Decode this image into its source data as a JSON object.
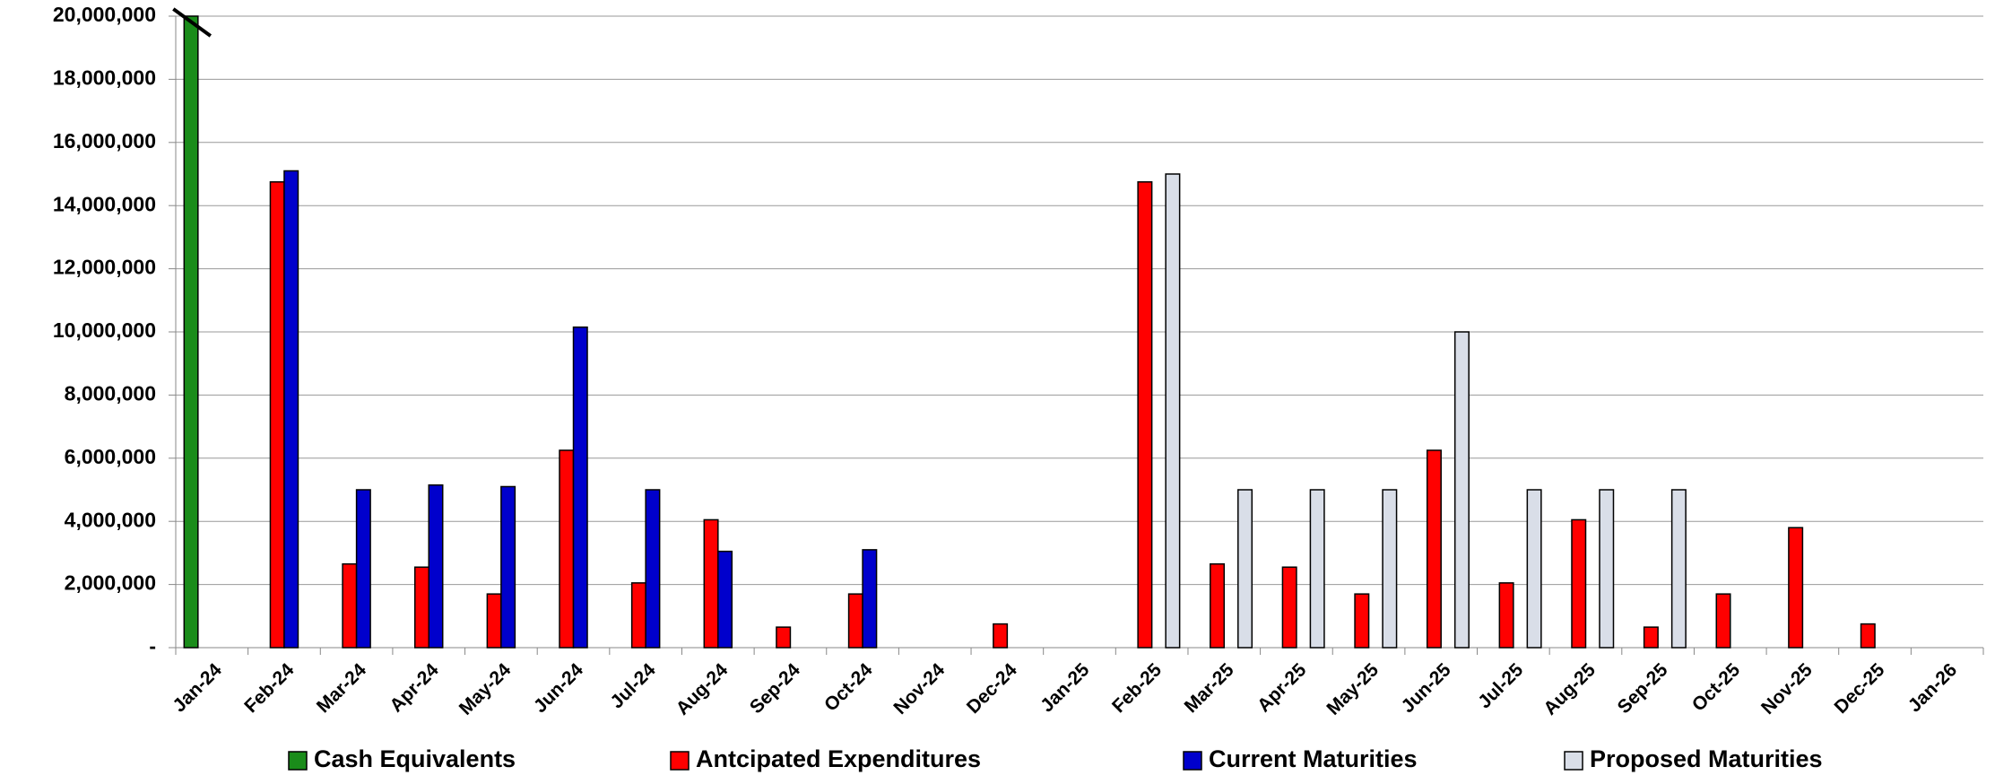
{
  "chart_data": {
    "type": "bar",
    "categories": [
      "Jan-24",
      "Feb-24",
      "Mar-24",
      "Apr-24",
      "May-24",
      "Jun-24",
      "Jul-24",
      "Aug-24",
      "Sep-24",
      "Oct-24",
      "Nov-24",
      "Dec-24",
      "Jan-25",
      "Feb-25",
      "Mar-25",
      "Apr-25",
      "May-25",
      "Jun-25",
      "Jul-25",
      "Aug-25",
      "Sep-25",
      "Oct-25",
      "Nov-25",
      "Dec-25",
      "Jan-26"
    ],
    "series": [
      {
        "name": "Cash Equivalents",
        "color": "#1a8c1a",
        "values": [
          20000000,
          null,
          null,
          null,
          null,
          null,
          null,
          null,
          null,
          null,
          null,
          null,
          null,
          null,
          null,
          null,
          null,
          null,
          null,
          null,
          null,
          null,
          null,
          null,
          null
        ]
      },
      {
        "name": "Antcipated Expenditures",
        "color": "#ff0000",
        "values": [
          null,
          14750000,
          2650000,
          2550000,
          1700000,
          6250000,
          2050000,
          4050000,
          650000,
          1700000,
          null,
          750000,
          null,
          14750000,
          2650000,
          2550000,
          1700000,
          6250000,
          2050000,
          4050000,
          650000,
          1700000,
          3800000,
          750000,
          null
        ]
      },
      {
        "name": "Current Maturities",
        "color": "#0000cc",
        "values": [
          null,
          15100000,
          5000000,
          5150000,
          5100000,
          10150000,
          5000000,
          3050000,
          null,
          3100000,
          null,
          null,
          null,
          null,
          null,
          null,
          null,
          null,
          null,
          null,
          null,
          null,
          null,
          null,
          null
        ]
      },
      {
        "name": "Proposed Maturities",
        "color": "#d9dee8",
        "values": [
          null,
          null,
          null,
          null,
          null,
          null,
          null,
          null,
          null,
          null,
          null,
          null,
          null,
          15000000,
          5000000,
          5000000,
          5000000,
          10000000,
          5000000,
          5000000,
          5000000,
          null,
          null,
          null,
          null
        ]
      }
    ],
    "ylim": [
      0,
      20000000
    ],
    "yticks": [
      {
        "value": 0,
        "label": "-"
      },
      {
        "value": 2000000,
        "label": "2,000,000"
      },
      {
        "value": 4000000,
        "label": "4,000,000"
      },
      {
        "value": 6000000,
        "label": "6,000,000"
      },
      {
        "value": 8000000,
        "label": "8,000,000"
      },
      {
        "value": 10000000,
        "label": "10,000,000"
      },
      {
        "value": 12000000,
        "label": "12,000,000"
      },
      {
        "value": 14000000,
        "label": "14,000,000"
      },
      {
        "value": 16000000,
        "label": "16,000,000"
      },
      {
        "value": 18000000,
        "label": "18,000,000"
      },
      {
        "value": 20000000,
        "label": "20,000,000"
      }
    ],
    "grid": true,
    "legend": "bottom"
  }
}
